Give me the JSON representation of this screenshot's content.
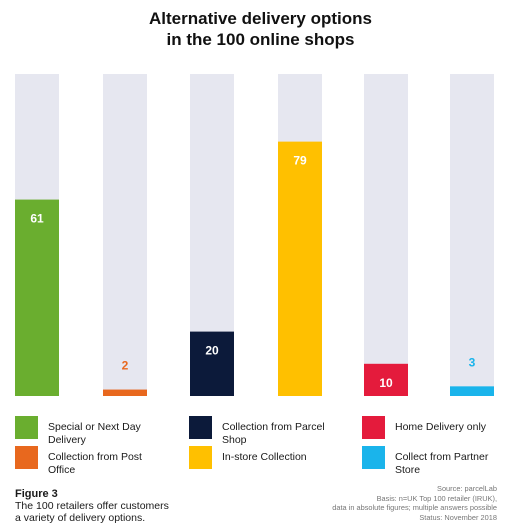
{
  "title_lines": [
    "Alternative delivery options",
    "in the 100 online shops"
  ],
  "chart_data": {
    "type": "bar",
    "ylim": [
      0,
      100
    ],
    "categories": [
      "Special or Next Day Delivery",
      "Collection from Post Office",
      "Collection from Parcel Shop",
      "In-store Collection",
      "Home Delivery only",
      "Collect from Partner Store"
    ],
    "values": [
      61,
      2,
      20,
      79,
      10,
      3
    ],
    "data_labels": [
      "61",
      "2",
      "20",
      "79",
      "10",
      "3"
    ],
    "colors": [
      "#6aae2f",
      "#e8681e",
      "#0c1a3a",
      "#ffc000",
      "#e41b3c",
      "#1ab4eb"
    ],
    "label_colors": [
      "#ffffff",
      "#e8681e",
      "#ffffff",
      "#ffffff",
      "#ffffff",
      "#1ab4eb"
    ],
    "background_bar_color": "#e6e7f0",
    "grid": false
  },
  "legend": [
    {
      "label": "Special or Next Day Delivery",
      "color": "#6aae2f"
    },
    {
      "label": "Collection from Parcel Shop",
      "color": "#0c1a3a"
    },
    {
      "label": "Home Delivery only",
      "color": "#e41b3c"
    },
    {
      "label": "Collection from Post Office",
      "color": "#e8681e"
    },
    {
      "label": "In-store Collection",
      "color": "#ffc000"
    },
    {
      "label": "Collect from Partner Store",
      "color": "#1ab4eb"
    }
  ],
  "figure": {
    "label": "Figure 3",
    "caption": "The 100 retailers offer customers a variety of delivery options."
  },
  "source": {
    "line1": "Source: parcelLab",
    "line2": "Basis: n=UK Top 100 retailer (IRUK),",
    "line3": "data in absolute figures; multiple answers possible",
    "line4": "Status: November 2018"
  }
}
